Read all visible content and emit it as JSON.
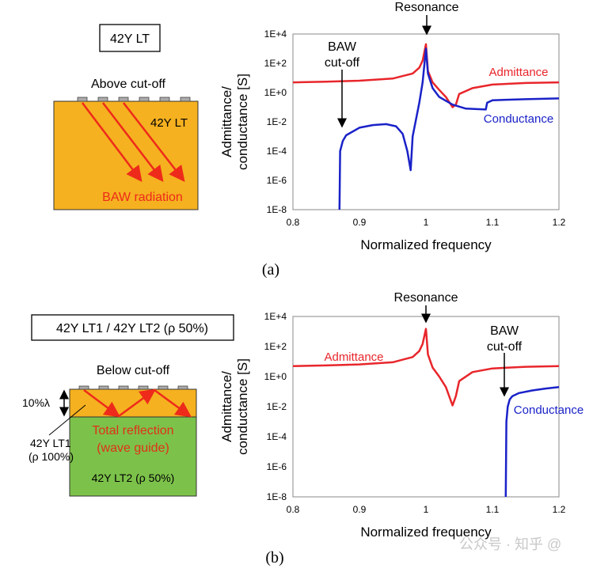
{
  "panel_a": {
    "box_label": "42Y LT",
    "title": "Above cut-off",
    "substrate_label": "42Y LT",
    "radiation_label": "BAW radiation",
    "caption": "(a)"
  },
  "panel_b": {
    "box_label": "42Y LT1 / 42Y LT2 (ρ 50%)",
    "title": "Below cut-off",
    "thickness_label": "10%λ",
    "layer1_label": "42Y LT1",
    "layer1_density": "(ρ 100%)",
    "reflection_label_1": "Total reflection",
    "reflection_label_2": "(wave guide)",
    "layer2_label": "42Y LT2 (ρ 50%)",
    "caption": "(b)"
  },
  "watermark": "公众号 · 知乎 @",
  "colors": {
    "admittance": "#e8262b",
    "conductance": "#1a22c8",
    "orange": "#f5b120",
    "green": "#7cc24a",
    "arrow": "#ee2a1a"
  },
  "chart_data": [
    {
      "type": "line",
      "xlabel": "Normalized frequency",
      "ylabel_1": "Admittance/",
      "ylabel_2": "conductance [S]",
      "xlim": [
        0.8,
        1.2
      ],
      "ylim": [
        1e-08,
        10000.0
      ],
      "yscale": "log",
      "xticks": [
        "0.8",
        "0.9",
        "1",
        "1.1",
        "1.2"
      ],
      "yticks": [
        "1E-8",
        "1E-6",
        "1E-4",
        "1E-2",
        "1E+0",
        "1E+2",
        "1E+4"
      ],
      "annotations": {
        "resonance": "Resonance",
        "cutoff_1": "BAW",
        "cutoff_2": "cut-off"
      },
      "series": [
        {
          "name": "Admittance",
          "x": [
            0.8,
            0.85,
            0.9,
            0.95,
            0.98,
            0.99,
            0.995,
            1.0,
            1.003,
            1.01,
            1.02,
            1.03,
            1.04,
            1.045,
            1.05,
            1.07,
            1.1,
            1.15,
            1.2
          ],
          "y": [
            5,
            5.5,
            6.5,
            9,
            20,
            50,
            150,
            2000,
            30,
            5,
            1.5,
            0.5,
            0.1,
            0.15,
            0.8,
            2,
            3.5,
            4.5,
            5
          ]
        },
        {
          "name": "Conductance",
          "x": [
            0.87,
            0.871,
            0.875,
            0.88,
            0.9,
            0.92,
            0.94,
            0.955,
            0.965,
            0.972,
            0.977,
            0.98,
            0.99,
            0.995,
            1.0,
            1.003,
            1.01,
            1.02,
            1.04,
            1.06,
            1.09,
            1.092,
            1.1,
            1.15,
            1.2
          ],
          "y": [
            1e-08,
            0.0001,
            0.0005,
            0.0012,
            0.004,
            0.006,
            0.007,
            0.005,
            0.0015,
            0.0001,
            5e-06,
            0.001,
            0.2,
            5,
            1000,
            20,
            2,
            0.5,
            0.15,
            0.08,
            0.07,
            0.2,
            0.3,
            0.35,
            0.4
          ]
        }
      ]
    },
    {
      "type": "line",
      "xlabel": "Normalized frequency",
      "ylabel_1": "Admittance/",
      "ylabel_2": "conductance [S]",
      "xlim": [
        0.8,
        1.2
      ],
      "ylim": [
        1e-08,
        10000.0
      ],
      "yscale": "log",
      "xticks": [
        "0.8",
        "0.9",
        "1",
        "1.1",
        "1.2"
      ],
      "yticks": [
        "1E-8",
        "1E-6",
        "1E-4",
        "1E-2",
        "1E+0",
        "1E+2",
        "1E+4"
      ],
      "annotations": {
        "resonance": "Resonance",
        "cutoff_1": "BAW",
        "cutoff_2": "cut-off"
      },
      "series": [
        {
          "name": "Admittance",
          "x": [
            0.8,
            0.85,
            0.9,
            0.95,
            0.98,
            0.99,
            0.995,
            1.0,
            1.003,
            1.01,
            1.02,
            1.03,
            1.04,
            1.045,
            1.05,
            1.07,
            1.1,
            1.15,
            1.2
          ],
          "y": [
            5,
            5.5,
            6.5,
            9,
            20,
            50,
            150,
            1500,
            30,
            4,
            1,
            0.2,
            0.012,
            0.05,
            0.5,
            2,
            3.5,
            4.5,
            5
          ]
        },
        {
          "name": "Conductance",
          "x": [
            1.12,
            1.121,
            1.123,
            1.126,
            1.13,
            1.14,
            1.16,
            1.18,
            1.2
          ],
          "y": [
            1e-08,
            0.001,
            0.01,
            0.03,
            0.05,
            0.08,
            0.12,
            0.16,
            0.2
          ]
        }
      ]
    }
  ]
}
